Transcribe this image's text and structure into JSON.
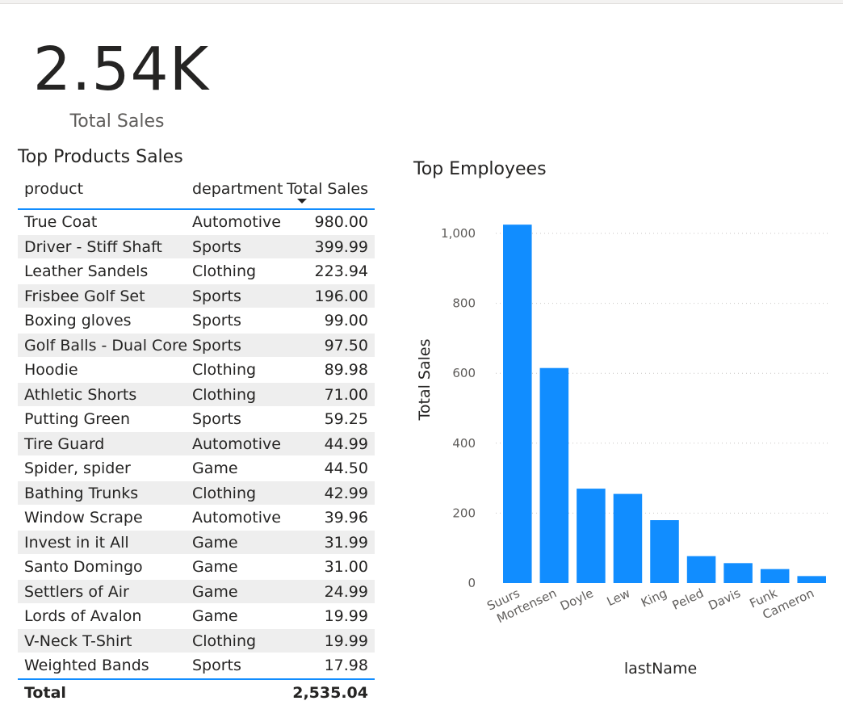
{
  "kpi": {
    "value": "2.54K",
    "label": "Total Sales"
  },
  "table": {
    "title": "Top Products Sales",
    "columns": {
      "product": "product",
      "department": "department",
      "total_sales": "Total Sales"
    },
    "sort": "Total Sales descending",
    "rows": [
      {
        "product": "True Coat",
        "department": "Automotive",
        "total_sales": "980.00"
      },
      {
        "product": "Driver - Stiff Shaft",
        "department": "Sports",
        "total_sales": "399.99"
      },
      {
        "product": "Leather Sandels",
        "department": "Clothing",
        "total_sales": "223.94"
      },
      {
        "product": "Frisbee Golf Set",
        "department": "Sports",
        "total_sales": "196.00"
      },
      {
        "product": "Boxing gloves",
        "department": "Sports",
        "total_sales": "99.00"
      },
      {
        "product": "Golf Balls - Dual Core",
        "department": "Sports",
        "total_sales": "97.50"
      },
      {
        "product": "Hoodie",
        "department": "Clothing",
        "total_sales": "89.98"
      },
      {
        "product": "Athletic Shorts",
        "department": "Clothing",
        "total_sales": "71.00"
      },
      {
        "product": "Putting Green",
        "department": "Sports",
        "total_sales": "59.25"
      },
      {
        "product": "Tire Guard",
        "department": "Automotive",
        "total_sales": "44.99"
      },
      {
        "product": "Spider, spider",
        "department": "Game",
        "total_sales": "44.50"
      },
      {
        "product": "Bathing Trunks",
        "department": "Clothing",
        "total_sales": "42.99"
      },
      {
        "product": "Window Scrape",
        "department": "Automotive",
        "total_sales": "39.96"
      },
      {
        "product": "Invest in it All",
        "department": "Game",
        "total_sales": "31.99"
      },
      {
        "product": "Santo Domingo",
        "department": "Game",
        "total_sales": "31.00"
      },
      {
        "product": "Settlers of Air",
        "department": "Game",
        "total_sales": "24.99"
      },
      {
        "product": "Lords of Avalon",
        "department": "Game",
        "total_sales": "19.99"
      },
      {
        "product": "V-Neck T-Shirt",
        "department": "Clothing",
        "total_sales": "19.99"
      },
      {
        "product": "Weighted Bands",
        "department": "Sports",
        "total_sales": "17.98"
      }
    ],
    "total": {
      "label": "Total",
      "total_sales": "2,535.04"
    }
  },
  "chart": {
    "title": "Top Employees"
  },
  "chart_data": {
    "type": "bar",
    "title": "Top Employees",
    "xlabel": "lastName",
    "ylabel": "Total Sales",
    "categories": [
      "Suurs",
      "Mortensen",
      "Doyle",
      "Lew",
      "King",
      "Peled",
      "Davis",
      "Funk",
      "Cameron"
    ],
    "values": [
      1025,
      615,
      270,
      255,
      180,
      77,
      57,
      40,
      20
    ],
    "ylim": [
      0,
      1000
    ],
    "yticks": [
      0,
      200,
      400,
      600,
      800,
      1000
    ],
    "ytick_labels": [
      "0",
      "200",
      "400",
      "600",
      "800",
      "1,000"
    ],
    "grid": true,
    "bar_color": "#118dff",
    "grid_color": "#c8c6c4"
  }
}
